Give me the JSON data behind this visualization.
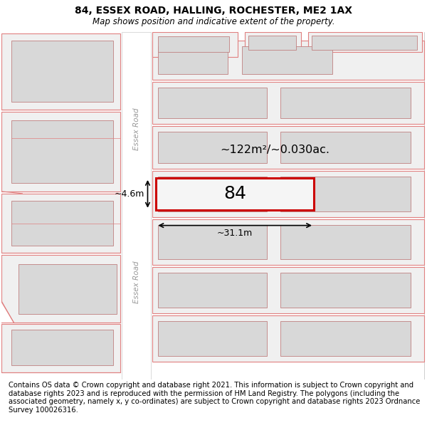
{
  "title": "84, ESSEX ROAD, HALLING, ROCHESTER, ME2 1AX",
  "subtitle": "Map shows position and indicative extent of the property.",
  "footer": "Contains OS data © Crown copyright and database right 2021. This information is subject to Crown copyright and database rights 2023 and is reproduced with the permission of HM Land Registry. The polygons (including the associated geometry, namely x, y co-ordinates) are subject to Crown copyright and database rights 2023 Ordnance Survey 100026316.",
  "parcel_fill": "#f0f0f0",
  "parcel_edge": "#e08080",
  "highlight_fill": "#f5f5f5",
  "highlight_edge": "#cc0000",
  "building_fill": "#d8d8d8",
  "building_edge": "#c08080",
  "road_fill": "#ffffff",
  "label_84": "84",
  "area_label": "~122m²/~0.030ac.",
  "width_label": "~31.1m",
  "height_label": "~4.6m",
  "road_label": "Essex Road",
  "title_fontsize": 10,
  "subtitle_fontsize": 8.5,
  "footer_fontsize": 7.2
}
